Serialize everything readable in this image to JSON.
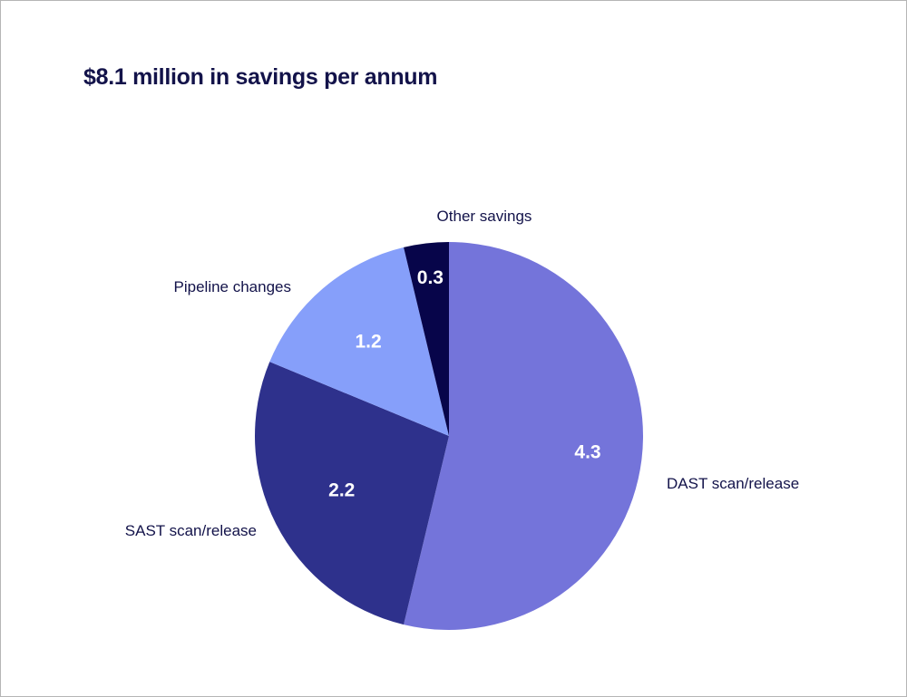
{
  "chart_data": {
    "type": "pie",
    "title": "$8.1 million in savings per annum",
    "start_angle_deg": 0,
    "direction": "clockwise",
    "slices": [
      {
        "label": "DAST scan/release",
        "value": 4.3,
        "value_label": "4.3",
        "color": "#7474da"
      },
      {
        "label": "SAST scan/release",
        "value": 2.2,
        "value_label": "2.2",
        "color": "#2e318c"
      },
      {
        "label": "Pipeline changes",
        "value": 1.2,
        "value_label": "1.2",
        "color": "#869ffa"
      },
      {
        "label": "Other savings",
        "value": 0.3,
        "value_label": "0.3",
        "color": "#07054a"
      }
    ]
  }
}
